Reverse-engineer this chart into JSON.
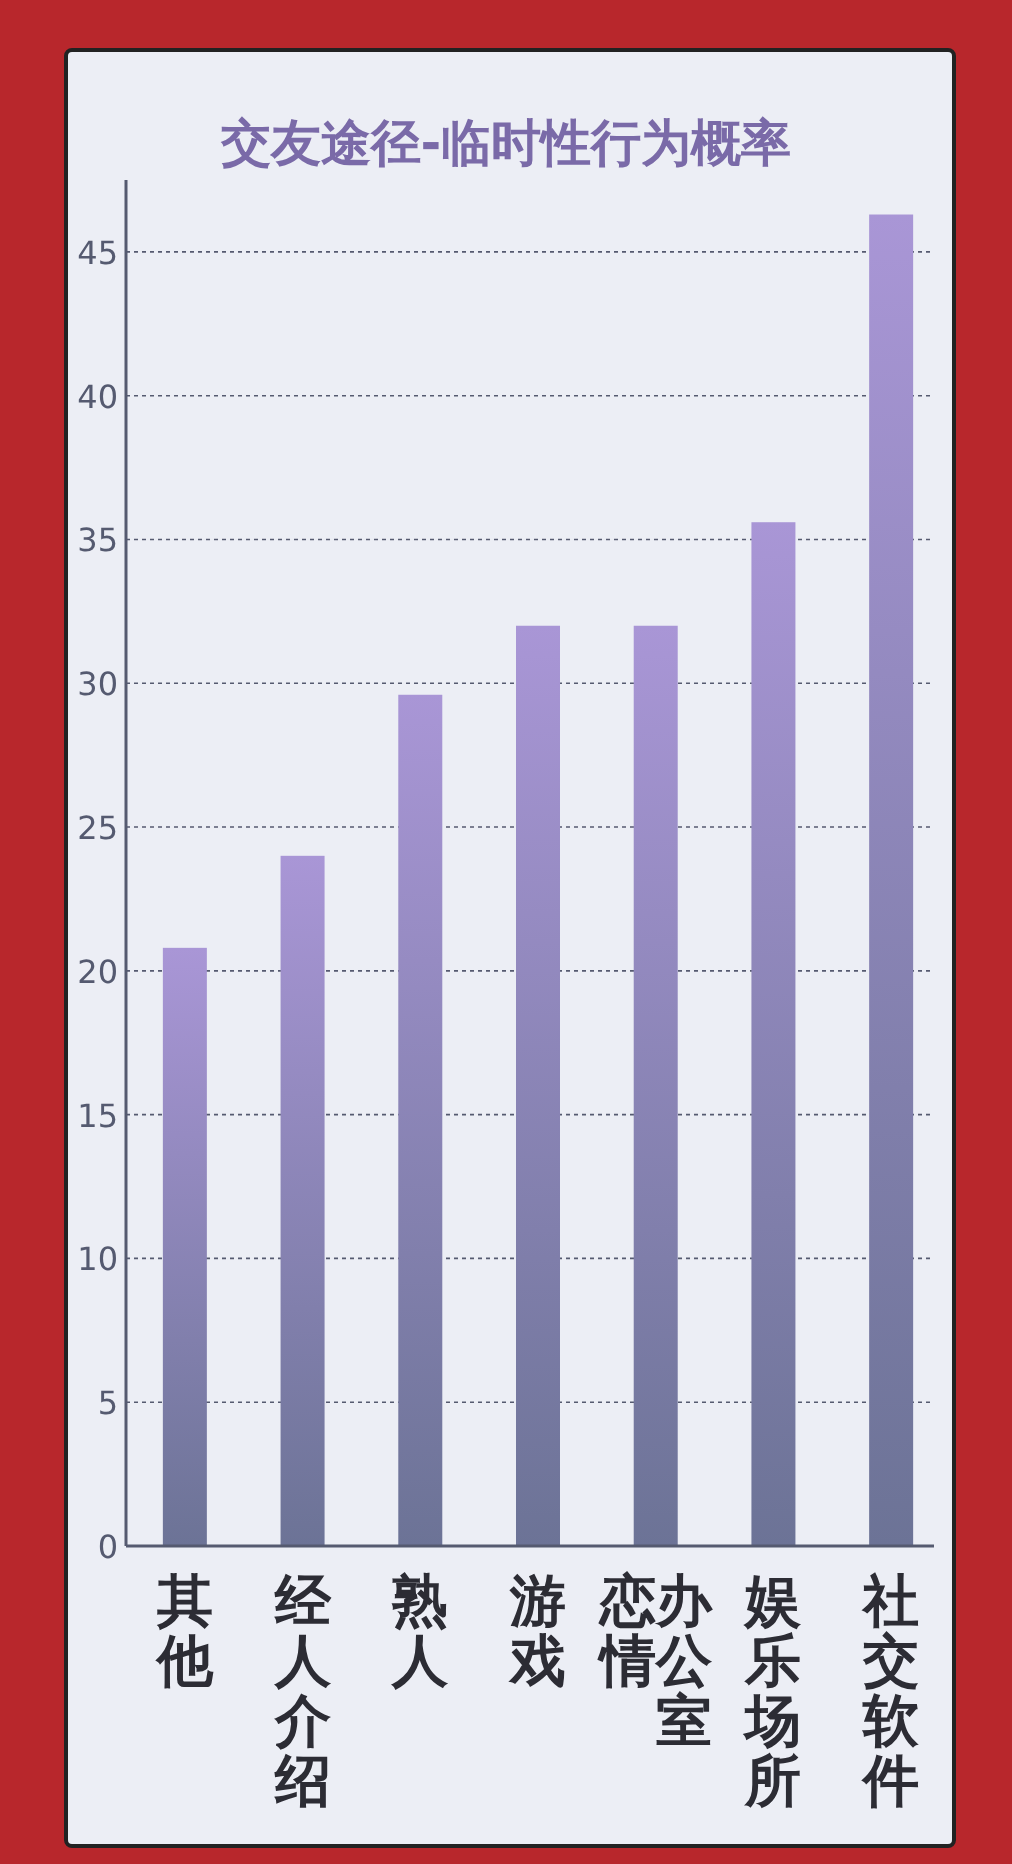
{
  "chart_data": {
    "type": "bar",
    "title": "交友途径-临时性行为概率",
    "categories": [
      "其他",
      "经人介绍",
      "熟人",
      "游戏",
      "办公室恋情",
      "娱乐场所",
      "社交软件"
    ],
    "values": [
      20.8,
      24,
      29.6,
      32,
      32,
      35.6,
      46.3
    ],
    "color": "#a996d6",
    "ylim": [
      0,
      47.5
    ],
    "yticks": [
      0,
      5,
      10,
      15,
      20,
      25,
      30,
      35,
      40,
      45
    ],
    "grid": "y"
  }
}
